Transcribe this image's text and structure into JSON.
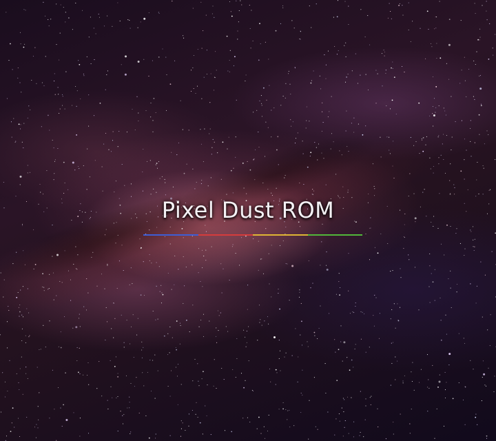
{
  "boot_screen": {
    "title": "Pixel Dust ROM",
    "bar_segments": [
      {
        "color": "#3d5ed6"
      },
      {
        "color": "#d63c3c"
      },
      {
        "color": "#e0b634"
      },
      {
        "color": "#52b83a"
      }
    ],
    "colors": {
      "title_text": "#f4f1f4",
      "background": "#1a0d1e"
    },
    "background_image": "milky-way-galaxy"
  }
}
